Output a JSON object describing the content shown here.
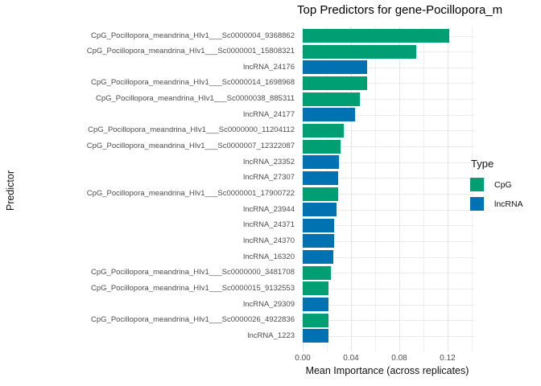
{
  "title": "Top Predictors for gene-Pocillopora_m",
  "axes": {
    "x_label": "Mean Importance (across replicates)",
    "y_label": "Predictor"
  },
  "legend": {
    "title": "Type",
    "items": [
      {
        "label": "CpG",
        "color": "#009E73"
      },
      {
        "label": "lncRNA",
        "color": "#0072B2"
      }
    ]
  },
  "chart_data": {
    "type": "bar",
    "orientation": "horizontal",
    "title": "Top Predictors for gene-Pocillopora_m",
    "xlabel": "Mean Importance (across replicates)",
    "ylabel": "Predictor",
    "xlim": [
      0,
      0.14
    ],
    "grid": true,
    "legend_position": "right",
    "x_minor_step": 0.02,
    "x_ticks": [
      {
        "value": 0.0,
        "label": "0.00"
      },
      {
        "value": 0.04,
        "label": "0.04"
      },
      {
        "value": 0.08,
        "label": "0.08"
      },
      {
        "value": 0.12,
        "label": "0.12"
      }
    ],
    "series_colors": {
      "CpG": "#009E73",
      "lncRNA": "#0072B2"
    },
    "rows": [
      {
        "label": "CpG_Pocillopora_meandrina_HIv1___Sc0000004_9368862",
        "type": "CpG",
        "value": 0.121
      },
      {
        "label": "CpG_Pocillopora_meandrina_HIv1___Sc0000001_15808321",
        "type": "CpG",
        "value": 0.094
      },
      {
        "label": "lncRNA_24176",
        "type": "lncRNA",
        "value": 0.053
      },
      {
        "label": "CpG_Pocillopora_meandrina_HIv1___Sc0000014_1698968",
        "type": "CpG",
        "value": 0.053
      },
      {
        "label": "CpG_Pocillopora_meandrina_HIv1___Sc0000038_885311",
        "type": "CpG",
        "value": 0.047
      },
      {
        "label": "lncRNA_24177",
        "type": "lncRNA",
        "value": 0.043
      },
      {
        "label": "CpG_Pocillopora_meandrina_HIv1___Sc0000000_11204112",
        "type": "CpG",
        "value": 0.034
      },
      {
        "label": "CpG_Pocillopora_meandrina_HIv1___Sc0000007_12322087",
        "type": "CpG",
        "value": 0.031
      },
      {
        "label": "lncRNA_23352",
        "type": "lncRNA",
        "value": 0.03
      },
      {
        "label": "lncRNA_27307",
        "type": "lncRNA",
        "value": 0.029
      },
      {
        "label": "CpG_Pocillopora_meandrina_HIv1___Sc0000001_17900722",
        "type": "CpG",
        "value": 0.029
      },
      {
        "label": "lncRNA_23944",
        "type": "lncRNA",
        "value": 0.028
      },
      {
        "label": "lncRNA_24371",
        "type": "lncRNA",
        "value": 0.026
      },
      {
        "label": "lncRNA_24370",
        "type": "lncRNA",
        "value": 0.026
      },
      {
        "label": "lncRNA_16320",
        "type": "lncRNA",
        "value": 0.025
      },
      {
        "label": "CpG_Pocillopora_meandrina_HIv1___Sc0000000_3481708",
        "type": "CpG",
        "value": 0.023
      },
      {
        "label": "CpG_Pocillopora_meandrina_HIv1___Sc0000015_9132553",
        "type": "CpG",
        "value": 0.021
      },
      {
        "label": "lncRNA_29309",
        "type": "lncRNA",
        "value": 0.021
      },
      {
        "label": "CpG_Pocillopora_meandrina_HIv1___Sc0000026_4922836",
        "type": "CpG",
        "value": 0.021
      },
      {
        "label": "lncRNA_1223",
        "type": "lncRNA",
        "value": 0.021
      }
    ]
  }
}
